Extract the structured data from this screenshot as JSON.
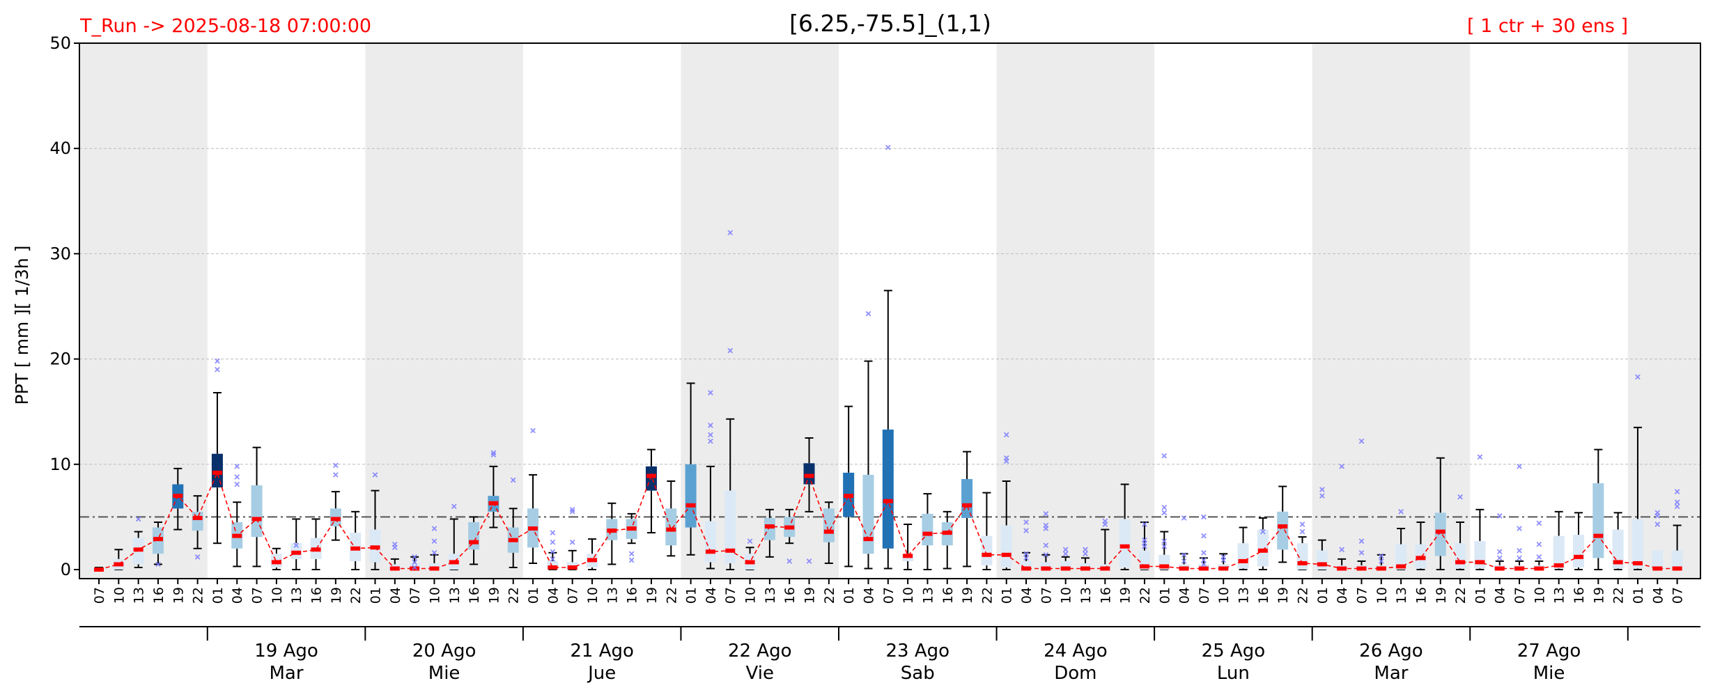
{
  "chart_data": {
    "type": "box",
    "title": "[6.25,-75.5]_(1,1)",
    "run_label": "T_Run -> 2025-08-18  07:00:00",
    "members_label": "[ 1 ctr + 30 ens ]",
    "ylabel": "PPT  [ mm ][ 1/3h ]",
    "ylim": [
      0,
      50
    ],
    "yticks": [
      "0",
      "10",
      "20",
      "30",
      "40",
      "50"
    ],
    "threshold": 5,
    "x_labels": [
      "07",
      "10",
      "13",
      "16",
      "19",
      "22",
      "01",
      "04",
      "07",
      "10",
      "13",
      "16",
      "19",
      "22",
      "01",
      "04",
      "07",
      "10",
      "13",
      "16",
      "19",
      "22",
      "01",
      "04",
      "07",
      "10",
      "13",
      "16",
      "19",
      "22",
      "01",
      "04",
      "07",
      "10",
      "13",
      "16",
      "19",
      "22",
      "01",
      "04",
      "07",
      "10",
      "13",
      "16",
      "19",
      "22",
      "01",
      "04",
      "07",
      "10",
      "13",
      "16",
      "19",
      "22",
      "01",
      "04",
      "07",
      "10",
      "13",
      "16",
      "19",
      "22",
      "01",
      "04",
      "07",
      "10",
      "13",
      "16",
      "19",
      "22",
      "01",
      "04",
      "07",
      "10",
      "13",
      "16",
      "19",
      "22",
      "01",
      "04",
      "07"
    ],
    "days": [
      {
        "date": "19 Ago",
        "weekday": "Mar"
      },
      {
        "date": "20 Ago",
        "weekday": "Mie"
      },
      {
        "date": "21 Ago",
        "weekday": "Jue"
      },
      {
        "date": "22 Ago",
        "weekday": "Vie"
      },
      {
        "date": "23 Ago",
        "weekday": "Sab"
      },
      {
        "date": "24 Ago",
        "weekday": "Dom"
      },
      {
        "date": "25 Ago",
        "weekday": "Lun"
      },
      {
        "date": "26 Ago",
        "weekday": "Mar"
      },
      {
        "date": "27 Ago",
        "weekday": "Mie"
      }
    ],
    "day_first_index": 6,
    "steps_per_day": 8,
    "shaded_days": [
      -1,
      1,
      3,
      5,
      7,
      9
    ],
    "colors": {
      "median": "#ff0000",
      "line": "#ff0000",
      "outlier": "#7b7bff",
      "shade": "#ececec",
      "threshold": "#555555",
      "box_scale": [
        "#dbe9f6",
        "#a6cde3",
        "#5aa1d1",
        "#2171b5",
        "#08306b"
      ]
    },
    "median": [
      0,
      0.5,
      1.9,
      2.9,
      7,
      4.9,
      9.2,
      3.2,
      4.8,
      0.7,
      1.6,
      1.9,
      4.8,
      2,
      2.1,
      0.1,
      0.1,
      0.1,
      0.7,
      2.6,
      6.3,
      2.8,
      3.9,
      0.2,
      0.2,
      0.9,
      3.7,
      3.9,
      8.9,
      3.8,
      6.1,
      1.7,
      1.8,
      0.7,
      4.1,
      4,
      8.9,
      3.6,
      7,
      2.9,
      6.5,
      1.3,
      3.4,
      3.5,
      6.1,
      1.4,
      1.4,
      0.1,
      0.1,
      0.1,
      0.1,
      0.1,
      2.2,
      0.3,
      0.3,
      0.1,
      0.1,
      0.1,
      0.8,
      1.8,
      4.1,
      0.6,
      0.5,
      0.1,
      0.1,
      0.1,
      0.3,
      1.1,
      3.6,
      0.7,
      0.7,
      0.1,
      0.1,
      0.1,
      0.4,
      1.2,
      3.2,
      0.7,
      0.6,
      0.1,
      0.1
    ],
    "q1": [
      0,
      0,
      0.5,
      1.5,
      5.8,
      3.7,
      7.8,
      2,
      3.1,
      0.2,
      1,
      1,
      4.1,
      0.8,
      0.7,
      0,
      0,
      0,
      0,
      1.9,
      5.5,
      1.6,
      2.1,
      0,
      0,
      0.2,
      2.8,
      2.9,
      7.5,
      2.3,
      4,
      0.7,
      0.6,
      0,
      2.8,
      3.1,
      8.1,
      2.6,
      5,
      1.5,
      2,
      0.8,
      2.3,
      2.3,
      4.9,
      0.4,
      0.2,
      0,
      0,
      0,
      0,
      0,
      0.2,
      0,
      0,
      0,
      0,
      0,
      0.1,
      0.3,
      1.9,
      0,
      0,
      0,
      0,
      0,
      0,
      0.1,
      1.3,
      0.1,
      0.1,
      0,
      0,
      0,
      0.1,
      0.2,
      1.1,
      0.1,
      0.1,
      0,
      0
    ],
    "q3": [
      0.1,
      1,
      3,
      4,
      8.1,
      5.5,
      11,
      4.5,
      8,
      1.5,
      2.5,
      3,
      5.8,
      3.5,
      3.8,
      0.5,
      0.6,
      0.6,
      1.5,
      4.5,
      7,
      4,
      5.8,
      0.8,
      0.7,
      1.5,
      4.8,
      4.8,
      9.8,
      5.8,
      10,
      4.6,
      7.5,
      1.5,
      4.9,
      5,
      10.1,
      5.8,
      9.2,
      9,
      13.3,
      1.5,
      5.3,
      4.5,
      8.6,
      3.2,
      4.2,
      0.8,
      0.7,
      0.8,
      0.6,
      0.5,
      4.8,
      1.8,
      1.4,
      0.5,
      0.5,
      0.5,
      2.5,
      3.8,
      5.5,
      2.5,
      1.8,
      0.4,
      0.4,
      0.4,
      2.4,
      2.4,
      5.4,
      2.5,
      2.7,
      0.4,
      0.4,
      0.4,
      3.2,
      3.3,
      8.2,
      3.8,
      4.8,
      1.8,
      1.8
    ],
    "whisker_low": [
      0,
      0,
      0.2,
      0.5,
      3.8,
      2,
      2.5,
      0.3,
      0.3,
      0,
      0,
      0,
      2.8,
      0,
      0,
      0,
      0,
      0,
      0,
      0.5,
      4,
      0.2,
      0.6,
      0,
      0,
      0,
      0.5,
      2.5,
      3.5,
      1.3,
      1.4,
      0.1,
      0,
      0,
      1.2,
      2.5,
      5.5,
      0.6,
      0.3,
      0.1,
      0.1,
      0,
      0,
      0.1,
      0.3,
      0,
      0,
      0,
      0,
      0,
      0,
      0,
      0,
      0,
      0,
      0,
      0,
      0,
      0,
      0,
      0.7,
      0,
      0,
      0,
      0,
      0,
      0,
      0,
      0,
      0,
      0,
      0,
      0,
      0,
      0,
      0,
      0,
      0,
      0,
      0,
      0
    ],
    "whisker_high": [
      0.2,
      1.9,
      3.6,
      4.5,
      9.6,
      7,
      16.8,
      6.4,
      11.6,
      2,
      4.8,
      4.8,
      7.4,
      5.5,
      7.5,
      1,
      1.2,
      1.4,
      4.8,
      5,
      9.8,
      5.8,
      9,
      1.6,
      1.8,
      2.9,
      6.3,
      5.3,
      11.4,
      8.4,
      17.7,
      9.8,
      14.3,
      2.1,
      5.7,
      5.7,
      12.5,
      6.4,
      15.5,
      19.8,
      26.5,
      4.3,
      7.2,
      5.5,
      11.2,
      7.3,
      8.4,
      1.6,
      1.4,
      1.2,
      1.1,
      3.8,
      8.1,
      4.5,
      3.6,
      1.5,
      1.1,
      1.5,
      4,
      4.9,
      7.9,
      3.1,
      2.8,
      1,
      0.8,
      1.4,
      3.9,
      4.5,
      10.6,
      4.5,
      5.7,
      0.8,
      0.8,
      0.8,
      5.5,
      5.4,
      11.4,
      5.4,
      13.5,
      1.8,
      4.2
    ],
    "outliers": [
      [
        2,
        4.8
      ],
      [
        3,
        0.5
      ],
      [
        5,
        1.2
      ],
      [
        6,
        19.8
      ],
      [
        6,
        19
      ],
      [
        7,
        9.8
      ],
      [
        7,
        8.8
      ],
      [
        7,
        8.1
      ],
      [
        10,
        2.3
      ],
      [
        12,
        9.9
      ],
      [
        12,
        9
      ],
      [
        14,
        9
      ],
      [
        15,
        2.4
      ],
      [
        15,
        2.1
      ],
      [
        16,
        1.2
      ],
      [
        16,
        0.7
      ],
      [
        16,
        0.2
      ],
      [
        17,
        3.9
      ],
      [
        17,
        2.7
      ],
      [
        17,
        1.6
      ],
      [
        18,
        6
      ],
      [
        20,
        11.1
      ],
      [
        20,
        10.9
      ],
      [
        21,
        8.5
      ],
      [
        22,
        13.2
      ],
      [
        23,
        3.5
      ],
      [
        23,
        2.6
      ],
      [
        23,
        1.7
      ],
      [
        23,
        1
      ],
      [
        24,
        5.7
      ],
      [
        24,
        5.5
      ],
      [
        24,
        2.6
      ],
      [
        27,
        1.5
      ],
      [
        27,
        0.9
      ],
      [
        31,
        16.8
      ],
      [
        31,
        13.7
      ],
      [
        31,
        12.8
      ],
      [
        31,
        12.2
      ],
      [
        32,
        32
      ],
      [
        32,
        20.8
      ],
      [
        33,
        2.7
      ],
      [
        35,
        0.8
      ],
      [
        36,
        0.8
      ],
      [
        39,
        24.3
      ],
      [
        40,
        40.1
      ],
      [
        46,
        12.8
      ],
      [
        46,
        10.6
      ],
      [
        46,
        10.3
      ],
      [
        47,
        4.5
      ],
      [
        47,
        3.7
      ],
      [
        47,
        1.5
      ],
      [
        47,
        1.1
      ],
      [
        48,
        5.3
      ],
      [
        48,
        4.2
      ],
      [
        48,
        3.9
      ],
      [
        48,
        2.3
      ],
      [
        48,
        1.4
      ],
      [
        49,
        1.9
      ],
      [
        49,
        1.5
      ],
      [
        50,
        1.9
      ],
      [
        50,
        1.5
      ],
      [
        51,
        4.6
      ],
      [
        51,
        4.3
      ],
      [
        53,
        4.3
      ],
      [
        53,
        2.8
      ],
      [
        53,
        2.5
      ],
      [
        53,
        2.2
      ],
      [
        54,
        10.8
      ],
      [
        54,
        5.9
      ],
      [
        54,
        5.4
      ],
      [
        54,
        2.7
      ],
      [
        54,
        2.2
      ],
      [
        55,
        4.9
      ],
      [
        55,
        1.4
      ],
      [
        55,
        0.8
      ],
      [
        56,
        3.2
      ],
      [
        56,
        1.6
      ],
      [
        56,
        0.9
      ],
      [
        56,
        0.5
      ],
      [
        56,
        5
      ],
      [
        57,
        1.2
      ],
      [
        57,
        0.9
      ],
      [
        59,
        3.6
      ],
      [
        61,
        4.3
      ],
      [
        61,
        3.6
      ],
      [
        62,
        7.6
      ],
      [
        62,
        7
      ],
      [
        63,
        9.8
      ],
      [
        63,
        1.9
      ],
      [
        64,
        12.2
      ],
      [
        64,
        2.7
      ],
      [
        64,
        1.6
      ],
      [
        65,
        1.3
      ],
      [
        65,
        0.8
      ],
      [
        66,
        5.5
      ],
      [
        69,
        6.9
      ],
      [
        70,
        10.7
      ],
      [
        71,
        5.1
      ],
      [
        71,
        1.7
      ],
      [
        71,
        1.1
      ],
      [
        72,
        9.8
      ],
      [
        72,
        3.9
      ],
      [
        72,
        1.8
      ],
      [
        72,
        1.1
      ],
      [
        73,
        4.4
      ],
      [
        73,
        2.4
      ],
      [
        73,
        1.2
      ],
      [
        78,
        18.3
      ],
      [
        79,
        5.4
      ],
      [
        79,
        5.1
      ],
      [
        79,
        4.3
      ],
      [
        80,
        7.4
      ],
      [
        80,
        6.4
      ],
      [
        80,
        6
      ]
    ]
  }
}
